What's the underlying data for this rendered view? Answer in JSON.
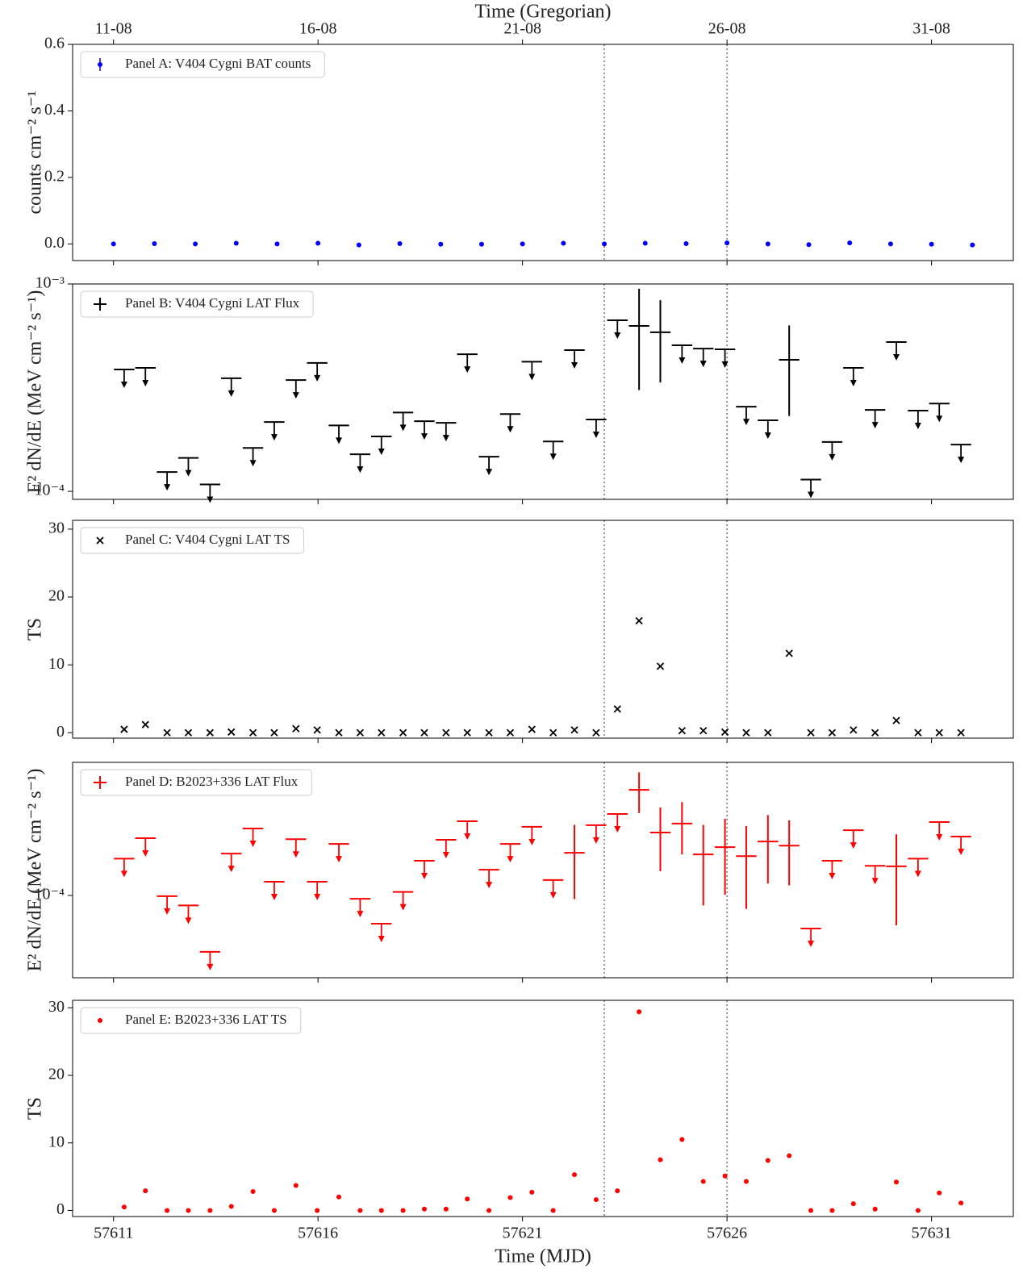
{
  "chart_data": [
    {
      "type": "scatter",
      "marker": "dot",
      "color": "#0000ff",
      "legend": "Panel A: V404 Cygni BAT counts",
      "ylabel": "counts cm⁻² s⁻¹",
      "top_xlabel": "Time (Gregorian)",
      "top_xticks": [
        {
          "value": 57611,
          "label": "11-08"
        },
        {
          "value": 57616,
          "label": "16-08"
        },
        {
          "value": 57621,
          "label": "21-08"
        },
        {
          "value": 57626,
          "label": "26-08"
        },
        {
          "value": 57631,
          "label": "31-08"
        }
      ],
      "x": [
        57611,
        57612,
        57613,
        57614,
        57615,
        57616,
        57617,
        57618,
        57619,
        57620,
        57621,
        57622,
        57623,
        57624,
        57625,
        57626,
        57627,
        57628,
        57629,
        57630,
        57631,
        57632
      ],
      "values": [
        0.0,
        0.001,
        0.0,
        0.002,
        0.0,
        0.002,
        -0.003,
        0.001,
        -0.001,
        -0.001,
        0.0,
        0.002,
        0.0,
        0.002,
        0.001,
        0.003,
        0.0,
        -0.002,
        0.003,
        0.0,
        -0.001,
        -0.003
      ],
      "xlim": [
        57610,
        57633
      ],
      "ylim": [
        -0.05,
        0.6
      ],
      "yticks": [
        {
          "value": 0,
          "label": "0.0"
        },
        0.2,
        0.4,
        0.6
      ],
      "vlines": [
        57623,
        57626
      ]
    },
    {
      "type": "errorbar",
      "color": "#000000",
      "legend": "Panel B: V404 Cygni LAT Flux",
      "ylabel": "E² dN/dE (MeV cm⁻² s⁻¹)",
      "log_y": true,
      "xerr": 0.25,
      "x": [
        57611.26,
        57611.78,
        57612.31,
        57612.83,
        57613.36,
        57613.88,
        57614.41,
        57614.93,
        57615.46,
        57615.98,
        57616.51,
        57617.03,
        57617.55,
        57618.08,
        57618.6,
        57619.13,
        57619.65,
        57620.18,
        57620.7,
        57621.23,
        57621.75,
        57622.27,
        57622.8,
        57623.32,
        57623.85,
        57624.37,
        57624.9,
        57625.42,
        57625.95,
        57626.47,
        57627.0,
        57627.52,
        57628.05,
        57628.57,
        57629.09,
        57629.62,
        57630.14,
        57630.67,
        57631.19,
        57631.72
      ],
      "values": [
        0.000387,
        0.000394,
        0.000124,
        0.000145,
        0.000108,
        0.000351,
        0.000162,
        0.000216,
        0.000344,
        0.000416,
        0.000208,
        0.000151,
        0.000184,
        0.00024,
        0.000218,
        0.000214,
        0.000458,
        0.000147,
        0.000236,
        0.000422,
        0.000174,
        0.00048,
        0.000222,
        0.000668,
        0.000628,
        0.000585,
        0.000506,
        0.000488,
        0.000484,
        0.000256,
        0.00022,
        0.000431,
        0.000114,
        0.000173,
        0.000394,
        0.000247,
        0.000525,
        0.000245,
        0.000265,
        0.000168
      ],
      "yerr": [
        null,
        null,
        null,
        null,
        null,
        null,
        null,
        null,
        null,
        null,
        null,
        null,
        null,
        null,
        null,
        null,
        null,
        null,
        null,
        null,
        null,
        null,
        null,
        null,
        0.00032,
        0.00025,
        null,
        null,
        null,
        null,
        null,
        0.0002,
        null,
        null,
        null,
        null,
        null,
        null,
        null,
        null
      ],
      "upper_limit": [
        true,
        true,
        true,
        true,
        true,
        true,
        true,
        true,
        true,
        true,
        true,
        true,
        true,
        true,
        true,
        true,
        true,
        true,
        true,
        true,
        true,
        true,
        true,
        true,
        false,
        false,
        true,
        true,
        true,
        true,
        true,
        false,
        true,
        true,
        true,
        true,
        true,
        true,
        true,
        true
      ],
      "xlim": [
        57610,
        57633
      ],
      "ylim": [
        9.15e-05,
        0.001
      ],
      "yticks": [
        {
          "value": 0.0001,
          "label": "10⁻⁴"
        },
        {
          "value": 0.001,
          "label": "10⁻³"
        }
      ],
      "vlines": [
        57623,
        57626
      ]
    },
    {
      "type": "scatter",
      "marker": "x",
      "color": "#000000",
      "legend": "Panel C: V404 Cygni LAT TS",
      "ylabel": "TS",
      "x": [
        57611.26,
        57611.78,
        57612.31,
        57612.83,
        57613.36,
        57613.88,
        57614.41,
        57614.93,
        57615.46,
        57615.98,
        57616.51,
        57617.03,
        57617.55,
        57618.08,
        57618.6,
        57619.13,
        57619.65,
        57620.18,
        57620.7,
        57621.23,
        57621.75,
        57622.27,
        57622.8,
        57623.32,
        57623.85,
        57624.37,
        57624.9,
        57625.42,
        57625.95,
        57626.47,
        57627.0,
        57627.52,
        57628.05,
        57628.57,
        57629.09,
        57629.62,
        57630.14,
        57630.67,
        57631.19,
        57631.72
      ],
      "values": [
        0.5,
        1.2,
        0,
        0,
        0,
        0.1,
        0,
        0,
        0.6,
        0.4,
        0,
        0,
        0,
        0,
        0,
        0,
        0,
        0,
        0,
        0.5,
        0,
        0.4,
        0,
        3.5,
        16.5,
        9.8,
        0.3,
        0.3,
        0.1,
        0,
        0,
        11.7,
        0,
        0,
        0.4,
        0,
        1.8,
        0,
        0,
        0
      ],
      "xlim": [
        57610,
        57633
      ],
      "ylim": [
        -0.8,
        31.3
      ],
      "yticks": [
        0,
        10,
        20,
        30
      ],
      "vlines": [
        57623,
        57626
      ]
    },
    {
      "type": "errorbar",
      "color": "#ff0000",
      "legend": "Panel D: B2023+336 LAT Flux",
      "ylabel": "E² dN/dE (MeV cm⁻² s⁻¹)",
      "log_y": true,
      "xerr": 0.25,
      "x": [
        57611.26,
        57611.78,
        57612.31,
        57612.83,
        57613.36,
        57613.88,
        57614.41,
        57614.93,
        57615.46,
        57615.98,
        57616.51,
        57617.03,
        57617.55,
        57618.08,
        57618.6,
        57619.13,
        57619.65,
        57620.18,
        57620.7,
        57621.23,
        57621.75,
        57622.27,
        57622.8,
        57623.32,
        57623.85,
        57624.37,
        57624.9,
        57625.42,
        57625.95,
        57626.47,
        57627.0,
        57627.52,
        57628.05,
        57628.57,
        57629.09,
        57629.62,
        57630.14,
        57630.67,
        57631.19,
        57631.72
      ],
      "values": [
        0.000167,
        0.000222,
        9.9e-05,
        8.7e-05,
        4.56e-05,
        0.000179,
        0.000254,
        0.000121,
        0.000219,
        0.000121,
        0.000205,
        9.55e-05,
        6.75e-05,
        0.000105,
        0.000162,
        0.000217,
        0.000281,
        0.000143,
        0.000205,
        0.00026,
        0.000124,
        0.000181,
        0.000266,
        0.000311,
        0.000435,
        0.00024,
        0.000272,
        0.000177,
        0.000196,
        0.000173,
        0.000212,
        0.0002,
        6.31e-05,
        0.000162,
        0.000248,
        0.000151,
        0.00015,
        0.000167,
        0.000278,
        0.000227
      ],
      "yerr": [
        null,
        null,
        null,
        null,
        null,
        null,
        null,
        null,
        null,
        null,
        null,
        null,
        null,
        null,
        null,
        null,
        null,
        null,
        null,
        null,
        null,
        8.6e-05,
        null,
        null,
        0.00012,
        0.0001,
        9.5e-05,
        9e-05,
        9.5e-05,
        9e-05,
        9.4e-05,
        8.5e-05,
        null,
        null,
        null,
        null,
        8.4e-05,
        null,
        null,
        null
      ],
      "upper_limit": [
        true,
        true,
        true,
        true,
        true,
        true,
        true,
        true,
        true,
        true,
        true,
        true,
        true,
        true,
        true,
        true,
        true,
        true,
        true,
        true,
        true,
        false,
        true,
        true,
        false,
        false,
        false,
        false,
        false,
        false,
        false,
        false,
        true,
        true,
        true,
        true,
        false,
        true,
        true,
        true
      ],
      "xlim": [
        57610,
        57633
      ],
      "ylim": [
        3.18e-05,
        0.000638
      ],
      "yticks": [
        {
          "value": 0.0001,
          "label": "10⁻⁴"
        }
      ],
      "vlines": [
        57623,
        57626
      ]
    },
    {
      "type": "scatter",
      "marker": "dot",
      "color": "#ff0000",
      "legend": "Panel E: B2023+336 LAT TS",
      "ylabel": "TS",
      "xlabel": "Time (MJD)",
      "x": [
        57611.26,
        57611.78,
        57612.31,
        57612.83,
        57613.36,
        57613.88,
        57614.41,
        57614.93,
        57615.46,
        57615.98,
        57616.51,
        57617.03,
        57617.55,
        57618.08,
        57618.6,
        57619.13,
        57619.65,
        57620.18,
        57620.7,
        57621.23,
        57621.75,
        57622.27,
        57622.8,
        57623.32,
        57623.85,
        57624.37,
        57624.9,
        57625.42,
        57625.95,
        57626.47,
        57627.0,
        57627.52,
        57628.05,
        57628.57,
        57629.09,
        57629.62,
        57630.14,
        57630.67,
        57631.19,
        57631.72
      ],
      "values": [
        0.5,
        2.9,
        0,
        0,
        0,
        0.6,
        2.8,
        0,
        3.7,
        0,
        2.0,
        0,
        0,
        0,
        0.2,
        0.2,
        1.7,
        0,
        1.9,
        2.7,
        0,
        5.3,
        1.6,
        2.9,
        29.4,
        7.5,
        10.5,
        4.3,
        5.1,
        4.3,
        7.4,
        8.1,
        0,
        0,
        1.0,
        0.2,
        4.2,
        0,
        2.6,
        1.1
      ],
      "xlim": [
        57610,
        57633
      ],
      "ylim": [
        -0.9,
        31.1
      ],
      "yticks": [
        0,
        10,
        20,
        30
      ],
      "xticks": [
        57611,
        57616,
        57621,
        57626,
        57631
      ],
      "vlines": [
        57623,
        57626
      ]
    }
  ]
}
